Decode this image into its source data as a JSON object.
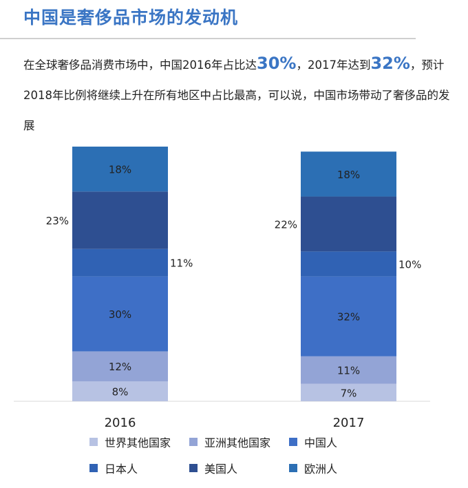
{
  "title": "中国是奢侈品市场的发动机",
  "description": {
    "p1": "在全球奢侈品消费市场中，中国2016年占比达",
    "h1": "30%",
    "p2": "，2017年达到",
    "h2": "32%",
    "p3": "，预计2018年比例将继续上升在所有地区中占比最高，可以说，中国市场带动了奢侈品的发展"
  },
  "chart_data": {
    "type": "bar",
    "stacked": true,
    "categories": [
      "2016",
      "2017"
    ],
    "series": [
      {
        "name": "世界其他国家",
        "values": [
          8,
          7
        ],
        "color": "#b7c2e3"
      },
      {
        "name": "亚洲其他国家",
        "values": [
          12,
          11
        ],
        "color": "#93a4d6"
      },
      {
        "name": "中国人",
        "values": [
          30,
          32
        ],
        "color": "#3e6fc6"
      },
      {
        "name": "日本人",
        "values": [
          11,
          10
        ],
        "color": "#3062b4"
      },
      {
        "name": "美国人",
        "values": [
          23,
          22
        ],
        "color": "#2e4f91"
      },
      {
        "name": "欧洲人",
        "values": [
          18,
          18
        ],
        "color": "#2c6fb4"
      }
    ],
    "data_labels": [
      [
        "8%",
        "12%",
        "30%",
        "11%",
        "23%",
        "18%"
      ],
      [
        "7%",
        "11%",
        "32%",
        "10%",
        "22%",
        "18%"
      ]
    ],
    "ylim": [
      0,
      102
    ],
    "legend_position": "bottom"
  }
}
